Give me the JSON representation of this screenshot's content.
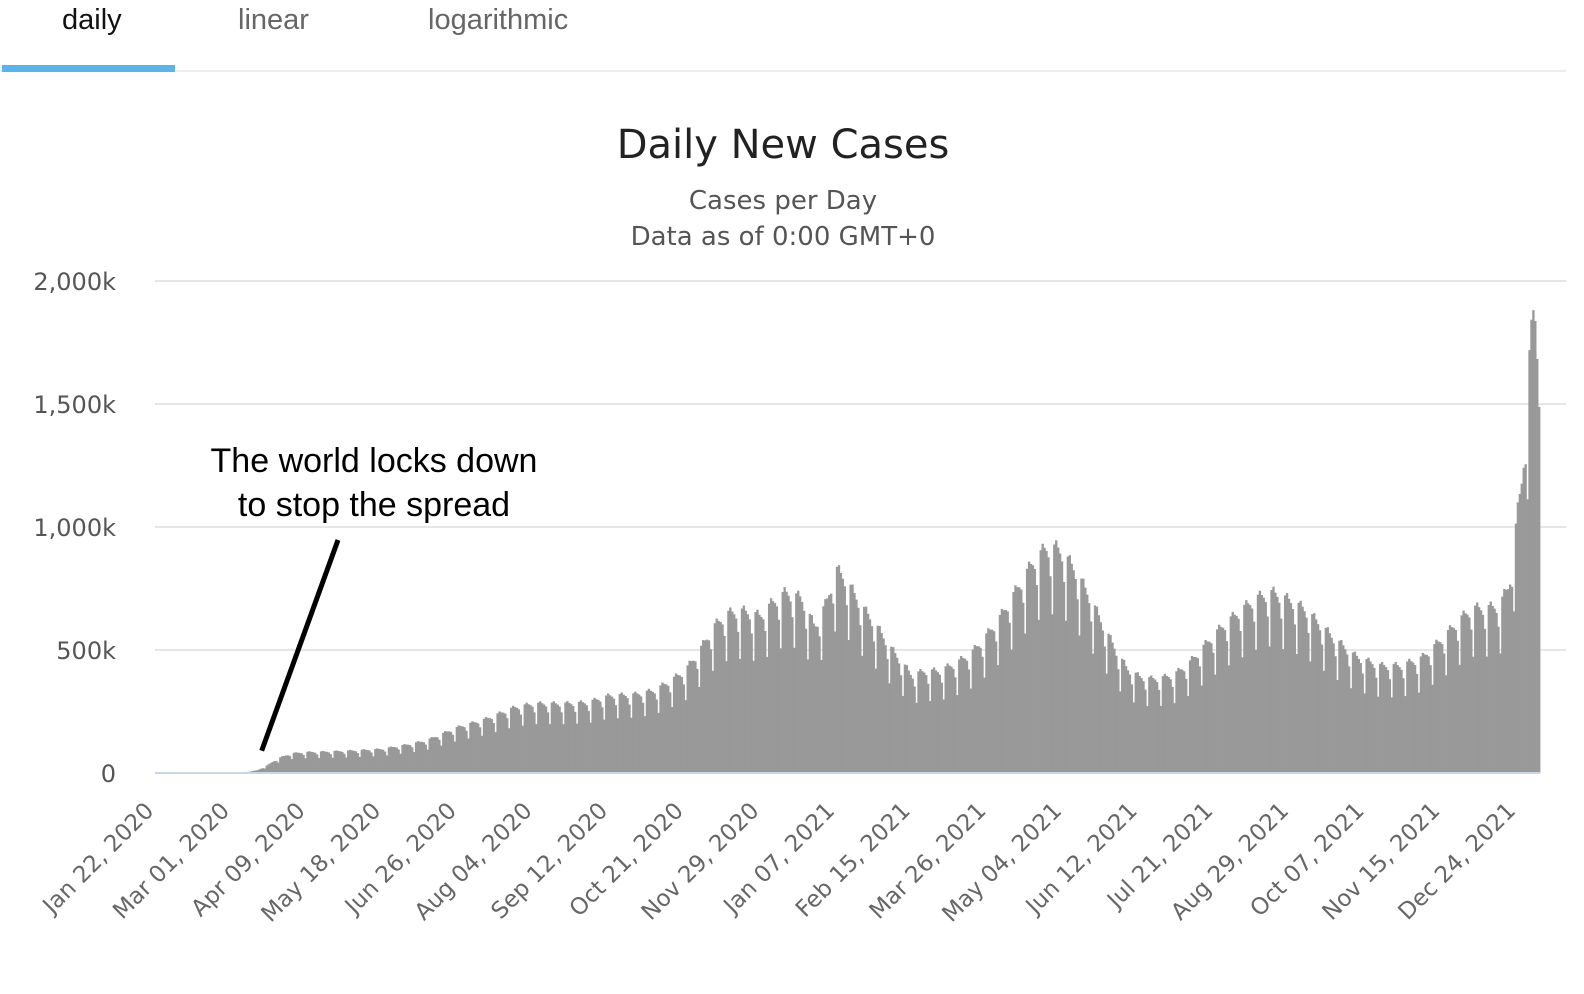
{
  "tabs": [
    {
      "label": "daily",
      "active": true
    },
    {
      "label": "linear",
      "active": false
    },
    {
      "label": "logarithmic",
      "active": false
    }
  ],
  "colors": {
    "accent": "#5ab4ea",
    "bars": "#999999",
    "grid": "#e6e6e6",
    "baseline": "#c9d6ea"
  },
  "chart_data": {
    "type": "bar",
    "title": "Daily New Cases",
    "subtitle": [
      "Cases per Day",
      "Data as of 0:00 GMT+0"
    ],
    "xlabel": "",
    "ylabel": "",
    "ylim": [
      0,
      2000000
    ],
    "y_ticks": [
      {
        "value": 0,
        "label": "0"
      },
      {
        "value": 500000,
        "label": "500k"
      },
      {
        "value": 1000000,
        "label": "1,000k"
      },
      {
        "value": 1500000,
        "label": "1,500k"
      },
      {
        "value": 2000000,
        "label": "2,000k"
      }
    ],
    "x_range": [
      "2020-01-22",
      "2022-01-05"
    ],
    "x_ticks": [
      "Jan 22, 2020",
      "Mar 01, 2020",
      "Apr 09, 2020",
      "May 18, 2020",
      "Jun 26, 2020",
      "Aug 04, 2020",
      "Sep 12, 2020",
      "Oct 21, 2020",
      "Nov 29, 2020",
      "Jan 07, 2021",
      "Feb 15, 2021",
      "Mar 26, 2021",
      "May 04, 2021",
      "Jun 12, 2021",
      "Jul 21, 2021",
      "Aug 29, 2021",
      "Oct 07, 2021",
      "Nov 15, 2021",
      "Dec 24, 2021"
    ],
    "grid": true,
    "legend": "none",
    "series": [
      {
        "points": [
          [
            "2020-01-22",
            600
          ],
          [
            "2020-02-05",
            3500
          ],
          [
            "2020-02-12",
            2500
          ],
          [
            "2020-02-19",
            1200
          ],
          [
            "2020-03-01",
            2000
          ],
          [
            "2020-03-10",
            4500
          ],
          [
            "2020-03-15",
            12000
          ],
          [
            "2020-03-20",
            30000
          ],
          [
            "2020-03-25",
            55000
          ],
          [
            "2020-04-01",
            75000
          ],
          [
            "2020-04-09",
            80000
          ],
          [
            "2020-04-20",
            82000
          ],
          [
            "2020-05-01",
            85000
          ],
          [
            "2020-05-18",
            92000
          ],
          [
            "2020-06-01",
            110000
          ],
          [
            "2020-06-10",
            125000
          ],
          [
            "2020-06-26",
            175000
          ],
          [
            "2020-07-10",
            205000
          ],
          [
            "2020-07-25",
            250000
          ],
          [
            "2020-08-04",
            265000
          ],
          [
            "2020-08-20",
            265000
          ],
          [
            "2020-09-01",
            270000
          ],
          [
            "2020-09-12",
            295000
          ],
          [
            "2020-09-25",
            300000
          ],
          [
            "2020-10-05",
            315000
          ],
          [
            "2020-10-12",
            345000
          ],
          [
            "2020-10-21",
            390000
          ],
          [
            "2020-10-28",
            460000
          ],
          [
            "2020-11-05",
            560000
          ],
          [
            "2020-11-12",
            610000
          ],
          [
            "2020-11-20",
            620000
          ],
          [
            "2020-11-29",
            600000
          ],
          [
            "2020-12-05",
            650000
          ],
          [
            "2020-12-12",
            690000
          ],
          [
            "2020-12-20",
            670000
          ],
          [
            "2020-12-27",
            560000
          ],
          [
            "2021-01-02",
            650000
          ],
          [
            "2021-01-07",
            780000
          ],
          [
            "2021-01-12",
            740000
          ],
          [
            "2021-01-20",
            640000
          ],
          [
            "2021-01-28",
            560000
          ],
          [
            "2021-02-05",
            470000
          ],
          [
            "2021-02-15",
            375000
          ],
          [
            "2021-02-22",
            390000
          ],
          [
            "2021-03-01",
            390000
          ],
          [
            "2021-03-10",
            420000
          ],
          [
            "2021-03-18",
            460000
          ],
          [
            "2021-03-26",
            530000
          ],
          [
            "2021-04-02",
            600000
          ],
          [
            "2021-04-10",
            700000
          ],
          [
            "2021-04-18",
            800000
          ],
          [
            "2021-04-25",
            860000
          ],
          [
            "2021-05-01",
            860000
          ],
          [
            "2021-05-04",
            840000
          ],
          [
            "2021-05-10",
            780000
          ],
          [
            "2021-05-18",
            670000
          ],
          [
            "2021-05-25",
            560000
          ],
          [
            "2021-06-01",
            460000
          ],
          [
            "2021-06-06",
            400000
          ],
          [
            "2021-06-12",
            370000
          ],
          [
            "2021-06-18",
            360000
          ],
          [
            "2021-06-25",
            365000
          ],
          [
            "2021-07-01",
            380000
          ],
          [
            "2021-07-08",
            420000
          ],
          [
            "2021-07-14",
            470000
          ],
          [
            "2021-07-21",
            530000
          ],
          [
            "2021-07-28",
            580000
          ],
          [
            "2021-08-05",
            630000
          ],
          [
            "2021-08-12",
            670000
          ],
          [
            "2021-08-20",
            690000
          ],
          [
            "2021-08-29",
            660000
          ],
          [
            "2021-09-05",
            630000
          ],
          [
            "2021-09-12",
            580000
          ],
          [
            "2021-09-20",
            520000
          ],
          [
            "2021-10-01",
            450000
          ],
          [
            "2021-10-07",
            430000
          ],
          [
            "2021-10-15",
            410000
          ],
          [
            "2021-10-25",
            410000
          ],
          [
            "2021-11-05",
            440000
          ],
          [
            "2021-11-15",
            510000
          ],
          [
            "2021-11-25",
            590000
          ],
          [
            "2021-12-01",
            630000
          ],
          [
            "2021-12-08",
            630000
          ],
          [
            "2021-12-15",
            640000
          ],
          [
            "2021-12-20",
            720000
          ],
          [
            "2021-12-24",
            970000
          ],
          [
            "2021-12-27",
            1150000
          ],
          [
            "2021-12-30",
            1550000
          ],
          [
            "2022-01-02",
            1800000
          ],
          [
            "2022-01-04",
            1600000
          ]
        ]
      }
    ],
    "annotations": [
      {
        "text": [
          "The world locks down",
          "to stop the spread"
        ],
        "points_to": {
          "x": "2020-03-17",
          "y": 50000
        }
      }
    ]
  }
}
